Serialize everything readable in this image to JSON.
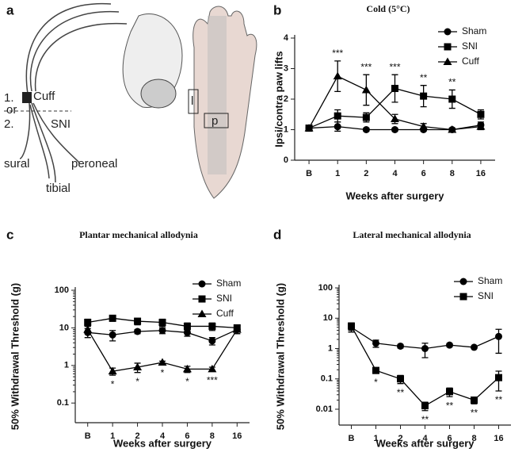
{
  "panel_a": {
    "letter": "a",
    "labels": {
      "one": "1.",
      "cuff": "Cuff",
      "or": "or",
      "two": "2.",
      "sni": "SNI",
      "sural": "sural",
      "peroneal": "peroneal",
      "tibial": "tibial",
      "lateral": "l",
      "plantar": "p"
    }
  },
  "chart_data": [
    {
      "panel": "b",
      "type": "line",
      "title": "Cold (5°C)",
      "x_label": "Weeks after surgery",
      "y_label": "Ipsi/contra paw lifts",
      "categories": [
        "B",
        "1",
        "2",
        "4",
        "6",
        "8",
        "16"
      ],
      "ylim": [
        0,
        4
      ],
      "yticks": [
        0,
        1,
        2,
        3,
        4
      ],
      "log_scale": false,
      "legend": "upper right",
      "series": [
        {
          "name": "Sham",
          "color": "#000000",
          "marker": "circle",
          "values": [
            1.05,
            1.1,
            1.0,
            1.0,
            1.0,
            1.0,
            1.15
          ],
          "errors": [
            0.05,
            0.15,
            0.05,
            0.05,
            0.05,
            0.05,
            0.1
          ]
        },
        {
          "name": "SNI",
          "color": "#000000",
          "marker": "square",
          "values": [
            1.05,
            1.45,
            1.4,
            2.35,
            2.1,
            2.0,
            1.5
          ],
          "errors": [
            0.05,
            0.2,
            0.15,
            0.45,
            0.35,
            0.3,
            0.15
          ]
        },
        {
          "name": "Cuff",
          "color": "#000000",
          "marker": "triangle",
          "values": [
            1.05,
            2.75,
            2.3,
            1.35,
            1.1,
            1.0,
            1.1
          ],
          "errors": [
            0.05,
            0.5,
            0.5,
            0.15,
            0.1,
            0.05,
            0.1
          ]
        }
      ],
      "significance": [
        null,
        "***",
        "***",
        "***",
        "**",
        "**",
        null
      ]
    },
    {
      "panel": "c",
      "type": "line",
      "title": "Plantar mechanical allodynia",
      "x_label": "Weeks after surgery",
      "y_label": "50% Withdrawal Threshold (g)",
      "categories": [
        "B",
        "1",
        "2",
        "4",
        "6",
        "8",
        "16"
      ],
      "ylim": [
        0.03,
        100
      ],
      "yticks": [
        0.1,
        1,
        10,
        100
      ],
      "log_scale": true,
      "legend": "upper right",
      "series": [
        {
          "name": "Sham",
          "color": "#000000",
          "marker": "circle",
          "values": [
            7.5,
            6.5,
            8,
            8.5,
            7.5,
            4.5,
            9
          ],
          "errors": [
            2,
            2,
            1,
            1.5,
            1.5,
            1,
            2
          ]
        },
        {
          "name": "SNI",
          "color": "#000000",
          "marker": "square",
          "values": [
            14,
            18,
            15,
            14,
            11,
            11,
            10
          ],
          "errors": [
            3,
            3,
            3,
            3,
            2.5,
            2.5,
            2
          ]
        },
        {
          "name": "Cuff",
          "color": "#000000",
          "marker": "triangle",
          "values": [
            9,
            0.7,
            0.9,
            1.2,
            0.8,
            0.8,
            9
          ],
          "errors": [
            2,
            0.15,
            0.25,
            0.1,
            0.15,
            0.1,
            2
          ]
        }
      ],
      "significance": [
        null,
        "*",
        "*",
        "*",
        "*",
        "***",
        null
      ]
    },
    {
      "panel": "d",
      "type": "line",
      "title": "Lateral mechanical allodynia",
      "x_label": "Weeks after surgery",
      "y_label": "50% Withdrawal Threshold (g)",
      "categories": [
        "B",
        "1",
        "2",
        "4",
        "6",
        "8",
        "16"
      ],
      "ylim": [
        0.003,
        100
      ],
      "yticks": [
        0.01,
        0.1,
        1,
        10,
        100
      ],
      "log_scale": true,
      "legend": "upper right",
      "series": [
        {
          "name": "Sham",
          "color": "#000000",
          "marker": "circle",
          "values": [
            5,
            1.5,
            1.2,
            1.0,
            1.3,
            1.1,
            2.5
          ],
          "errors": [
            1.5,
            0.4,
            0.15,
            0.5,
            0.15,
            0.1,
            1.8
          ]
        },
        {
          "name": "SNI",
          "color": "#000000",
          "marker": "square",
          "values": [
            5.5,
            0.19,
            0.1,
            0.013,
            0.038,
            0.02,
            0.11
          ],
          "errors": [
            1.5,
            0.04,
            0.03,
            0.004,
            0.012,
            0.005,
            0.07
          ]
        }
      ],
      "significance": [
        null,
        "*",
        "**",
        "**",
        "**",
        "**",
        "**"
      ]
    }
  ]
}
